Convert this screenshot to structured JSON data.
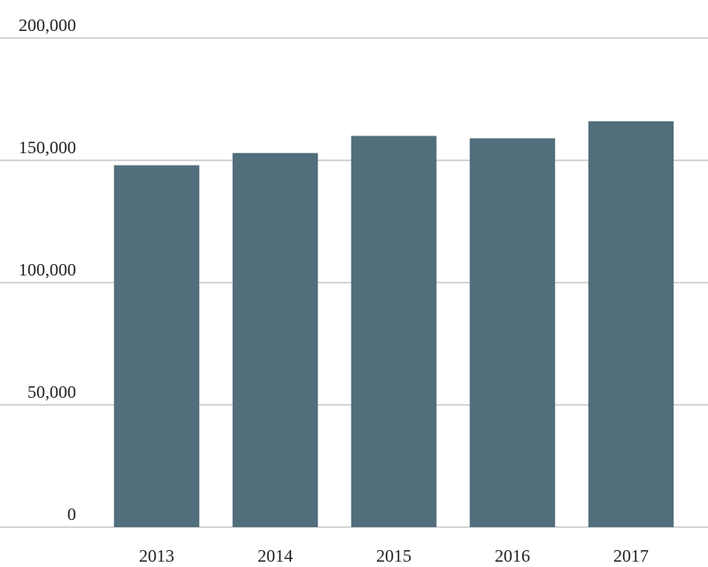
{
  "chart_data": {
    "type": "bar",
    "categories": [
      "2013",
      "2014",
      "2015",
      "2016",
      "2017"
    ],
    "values": [
      148000,
      153000,
      160000,
      159000,
      166000
    ],
    "color": "#526e7c",
    "ylim": [
      0,
      200000
    ],
    "yticks": [
      0,
      {
        "value": 50000,
        "label": "50,000"
      },
      {
        "value": 100000,
        "label": "100,000"
      },
      {
        "value": 150000,
        "label": "150,000"
      },
      {
        "value": 200000,
        "label": "200,000"
      }
    ],
    "grid": true
  }
}
